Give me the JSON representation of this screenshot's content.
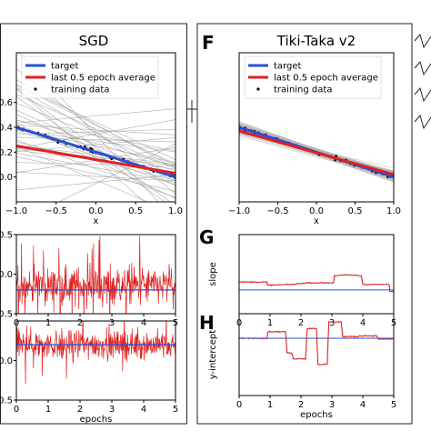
{
  "chart_data": [
    {
      "type": "line",
      "title": "SGD",
      "xlabel": "x",
      "ylabel": "",
      "xlim": [
        -1.0,
        1.0
      ],
      "ylim": [
        -0.2,
        1.0
      ],
      "xticks": [
        "−1.0",
        "−0.5",
        "0.0",
        "0.5",
        "1.0"
      ],
      "yticks": [
        {
          "v": 0.0,
          "label": "0.0"
        },
        {
          "v": 0.2,
          "label": "0.2"
        },
        {
          "v": 0.4,
          "label": "0.4"
        },
        {
          "v": 0.6,
          "label": "0.6"
        }
      ],
      "legend_placement": "upper-left",
      "series": [
        {
          "name": "target",
          "color": "#2a4fd6",
          "x": [
            -1.0,
            1.0
          ],
          "y": [
            0.4,
            0.0
          ]
        },
        {
          "name": "last 0.5 epoch average",
          "color": "#e02020",
          "x": [
            -1.0,
            1.0
          ],
          "y": [
            0.25,
            0.03
          ]
        },
        {
          "name": "training data",
          "color": "#000000",
          "style": "points"
        }
      ]
    },
    {
      "type": "line",
      "title": "",
      "xlabel": "",
      "ylabel": "",
      "xlim": [
        0,
        5
      ],
      "ylim": [
        -0.5,
        0.5
      ],
      "xticks": [
        "0",
        "1",
        "2",
        "3",
        "4",
        "5"
      ],
      "yticks": [
        {
          "v": 0.5,
          "label": "0.5"
        },
        {
          "v": 0.0,
          "label": "0.0"
        },
        {
          "v": -0.5,
          "label": "0.5"
        }
      ],
      "series": [
        {
          "name": "",
          "color": "#e02020",
          "mean": -0.15,
          "noise": 0.25
        },
        {
          "name": "",
          "color": "#2a4fd6",
          "value": -0.2
        }
      ]
    },
    {
      "type": "line",
      "title": "",
      "xlabel": "epochs",
      "ylabel": "",
      "xlim": [
        0,
        5
      ],
      "ylim": [
        -0.5,
        0.5
      ],
      "xticks": [
        "0",
        "1",
        "2",
        "3",
        "4",
        "5"
      ],
      "yticks": [
        {
          "v": 0.0,
          "label": "0.0"
        },
        {
          "v": -0.5,
          "label": "0.5"
        }
      ],
      "series": [
        {
          "name": "",
          "color": "#e02020",
          "mean": 0.2,
          "noise": 0.2
        },
        {
          "name": "",
          "color": "#2a4fd6",
          "value": 0.2
        }
      ]
    },
    {
      "type": "line",
      "panel_label": "F",
      "title": "Tiki-Taka v2",
      "xlabel": "x",
      "ylabel": "",
      "xlim": [
        -1.0,
        1.0
      ],
      "ylim": [
        -0.2,
        1.0
      ],
      "xticks": [
        "−1.0",
        "−0.5",
        "0.0",
        "0.5",
        "1.0"
      ],
      "yticks": [],
      "legend_placement": "upper-left",
      "series": [
        {
          "name": "target",
          "color": "#2a4fd6",
          "x": [
            -1.0,
            1.0
          ],
          "y": [
            0.4,
            0.0
          ]
        },
        {
          "name": "last 0.5 epoch average",
          "color": "#e02020",
          "x": [
            -1.0,
            1.0
          ],
          "y": [
            0.37,
            0.02
          ]
        },
        {
          "name": "training data",
          "color": "#000000",
          "style": "points"
        }
      ]
    },
    {
      "type": "line",
      "panel_label": "G",
      "title": "",
      "xlabel": "",
      "ylabel": "slope",
      "xlim": [
        0,
        5
      ],
      "ylim": [
        -0.5,
        0.5
      ],
      "xticks": [
        "0",
        "1",
        "2",
        "3",
        "4",
        "5"
      ],
      "yticks": [],
      "series": [
        {
          "name": "",
          "color": "#e02020",
          "x": [
            0,
            0.9,
            0.92,
            1.7,
            2.2,
            3.05,
            3.08,
            3.5,
            3.95,
            4.0,
            4.85,
            4.88,
            5.0
          ],
          "y": [
            -0.1,
            -0.1,
            -0.14,
            -0.13,
            -0.11,
            -0.11,
            -0.02,
            -0.01,
            -0.02,
            -0.13,
            -0.13,
            -0.22,
            -0.22
          ]
        },
        {
          "name": "",
          "color": "#2a4fd6",
          "value": -0.2
        }
      ]
    },
    {
      "type": "line",
      "panel_label": "H",
      "title": "",
      "xlabel": "epochs",
      "ylabel": "y-intercept",
      "xlim": [
        0,
        5
      ],
      "ylim": [
        -0.5,
        0.5
      ],
      "xticks": [
        "0",
        "1",
        "2",
        "3",
        "4",
        "5"
      ],
      "yticks": [],
      "series": [
        {
          "name": "",
          "color": "#e02020",
          "x": [
            0,
            0.9,
            0.93,
            1.5,
            1.55,
            1.7,
            1.75,
            2.15,
            2.2,
            2.5,
            2.55,
            2.85,
            2.9,
            3.3,
            3.35,
            3.85,
            3.9,
            4.45,
            4.5,
            5.0
          ],
          "y": [
            0.2,
            0.2,
            0.28,
            0.28,
            0.02,
            0.02,
            -0.05,
            -0.05,
            0.32,
            0.32,
            -0.12,
            -0.12,
            0.4,
            0.4,
            0.22,
            0.22,
            0.23,
            0.23,
            0.19,
            0.19
          ]
        },
        {
          "name": "",
          "color": "#2a4fd6",
          "value": 0.2
        }
      ]
    }
  ]
}
